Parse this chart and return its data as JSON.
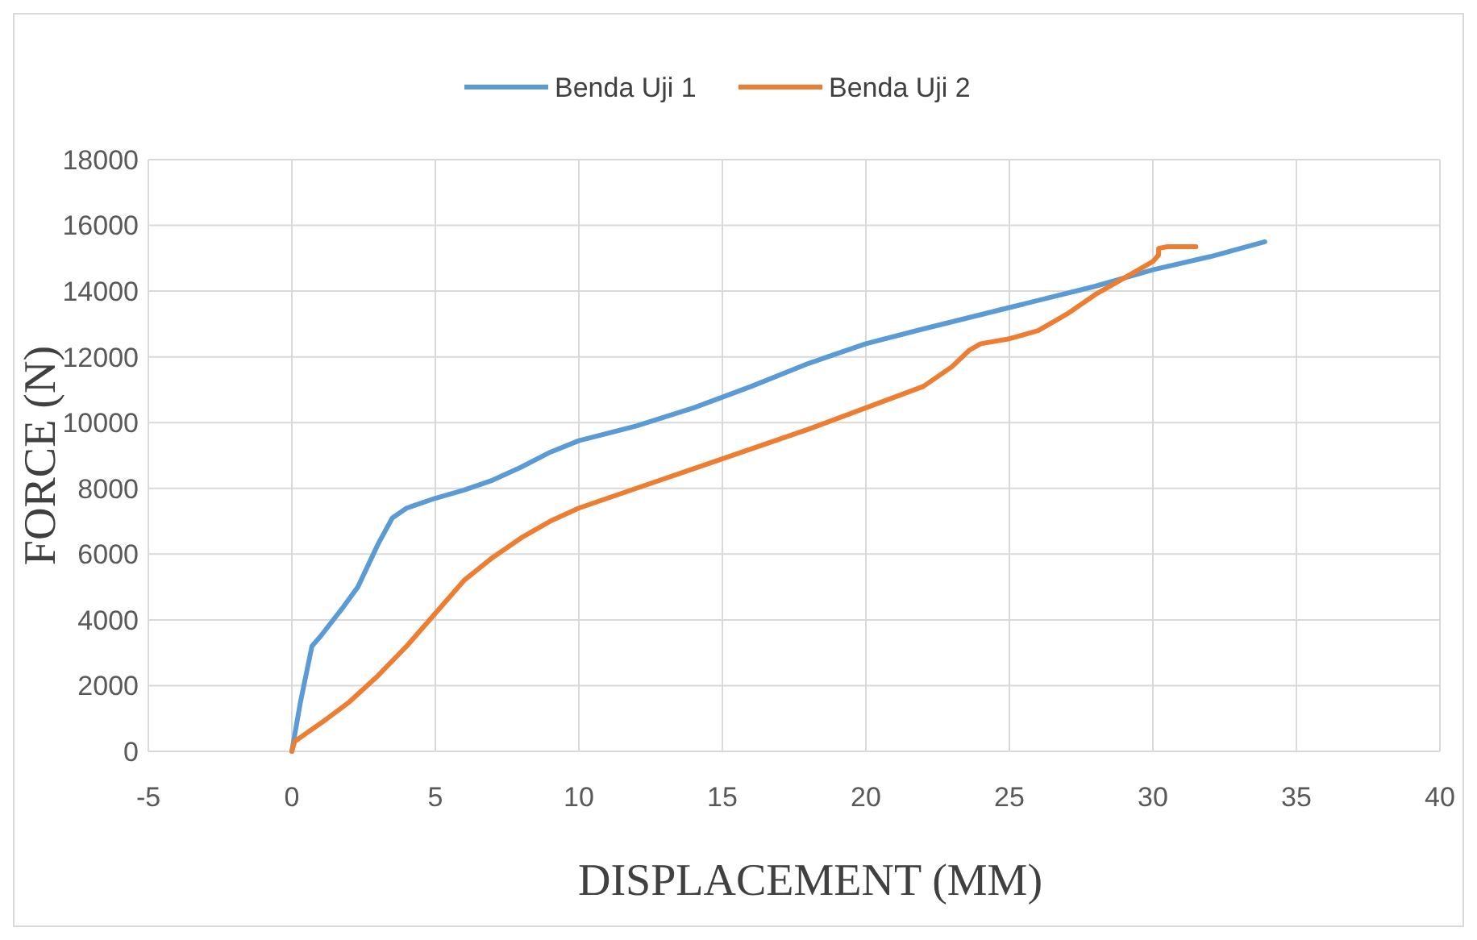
{
  "chart_data": {
    "type": "line",
    "xlabel": "DISPLACEMENT (MM)",
    "ylabel": "FORCE (N)",
    "xlim": [
      -5,
      40
    ],
    "xticks": [
      -5,
      0,
      5,
      10,
      15,
      20,
      25,
      30,
      35,
      40
    ],
    "ylim": [
      0,
      18000
    ],
    "yticks": [
      0,
      2000,
      4000,
      6000,
      8000,
      10000,
      12000,
      14000,
      16000,
      18000
    ],
    "grid": true,
    "legend": "top",
    "marker": "none",
    "line_style": "solid",
    "series": [
      {
        "name": "Benda Uji 1",
        "color": "#5b9bd5",
        "x": [
          0,
          0.3,
          0.7,
          1,
          1.8,
          2.3,
          3,
          3.5,
          4,
          5,
          6,
          7,
          8,
          9,
          10,
          12,
          14,
          16,
          18,
          20,
          22,
          25,
          28,
          30,
          32,
          33.9
        ],
        "values": [
          0,
          1500,
          3200,
          3500,
          4400,
          5000,
          6300,
          7100,
          7400,
          7700,
          7950,
          8250,
          8650,
          9100,
          9450,
          9900,
          10450,
          11100,
          11800,
          12400,
          12850,
          13500,
          14150,
          14650,
          15050,
          15500
        ]
      },
      {
        "name": "Benda Uji 2",
        "color": "#ed7d31",
        "x": [
          0,
          0.1,
          0.5,
          1,
          2,
          3,
          4,
          5,
          6,
          7,
          8,
          9,
          10,
          12,
          14,
          16,
          18,
          20,
          22,
          23,
          23.6,
          24,
          25,
          26,
          27,
          28,
          29,
          30,
          30.2,
          30.2,
          30.5,
          31.5
        ],
        "values": [
          0,
          300,
          550,
          850,
          1500,
          2300,
          3200,
          4200,
          5200,
          5900,
          6500,
          7000,
          7400,
          8000,
          8600,
          9200,
          9800,
          10450,
          11100,
          11700,
          12200,
          12400,
          12550,
          12800,
          13300,
          13900,
          14400,
          14900,
          15100,
          15300,
          15350,
          15350
        ]
      }
    ]
  }
}
